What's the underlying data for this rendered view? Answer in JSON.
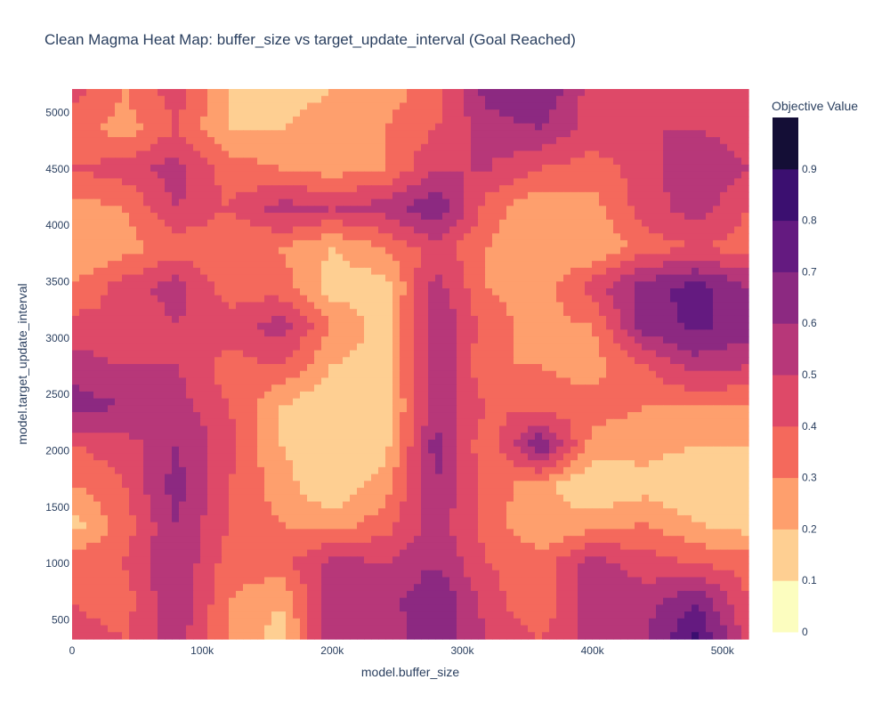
{
  "chart_data": {
    "type": "heatmap",
    "title": "Clean Magma Heat Map: buffer_size vs target_update_interval (Goal Reached)",
    "xlabel": "model.buffer_size",
    "ylabel": "model.target_update_interval",
    "xlim": [
      0,
      520000
    ],
    "ylim": [
      330,
      5210
    ],
    "x_ticks": [
      0,
      100000,
      200000,
      300000,
      400000,
      500000
    ],
    "x_tick_labels": [
      "0",
      "100k",
      "200k",
      "300k",
      "400k",
      "500k"
    ],
    "y_ticks": [
      500,
      1000,
      1500,
      2000,
      2500,
      3000,
      3500,
      4000,
      4500,
      5000
    ],
    "y_tick_labels": [
      "500",
      "1000",
      "1500",
      "2000",
      "2500",
      "3000",
      "3500",
      "4000",
      "4500",
      "5000"
    ],
    "colorbar": {
      "title": "Objective Value",
      "range": [
        0,
        1
      ],
      "ticks": [
        0,
        0.1,
        0.2,
        0.3,
        0.4,
        0.5,
        0.6,
        0.7,
        0.8,
        0.9
      ],
      "tick_labels": [
        "0",
        "0.1",
        "0.2",
        "0.3",
        "0.4",
        "0.5",
        "0.6",
        "0.7",
        "0.8",
        "0.9"
      ],
      "colorscale": [
        "#fcfdbf",
        "#fecf92",
        "#fe9f6d",
        "#f4695c",
        "#de4968",
        "#b73779",
        "#8c2981",
        "#641a80",
        "#3b0f70",
        "#140e36",
        "#000004"
      ]
    },
    "x": [
      0,
      40000,
      80000,
      120000,
      160000,
      200000,
      240000,
      280000,
      320000,
      360000,
      400000,
      440000,
      480000,
      520000
    ],
    "y": [
      330,
      650,
      1000,
      1350,
      1700,
      2050,
      2400,
      2750,
      3100,
      3450,
      3800,
      4150,
      4500,
      4850,
      5210
    ],
    "z": [
      [
        0.45,
        0.4,
        0.55,
        0.3,
        0.15,
        0.6,
        0.55,
        0.65,
        0.5,
        0.4,
        0.55,
        0.6,
        0.82,
        0.45
      ],
      [
        0.4,
        0.35,
        0.6,
        0.3,
        0.2,
        0.55,
        0.55,
        0.7,
        0.45,
        0.3,
        0.6,
        0.55,
        0.7,
        0.4
      ],
      [
        0.35,
        0.4,
        0.6,
        0.35,
        0.35,
        0.55,
        0.5,
        0.6,
        0.4,
        0.35,
        0.55,
        0.45,
        0.4,
        0.35
      ],
      [
        0.15,
        0.35,
        0.6,
        0.4,
        0.3,
        0.25,
        0.35,
        0.55,
        0.35,
        0.2,
        0.25,
        0.3,
        0.2,
        0.15
      ],
      [
        0.3,
        0.4,
        0.65,
        0.4,
        0.25,
        0.1,
        0.25,
        0.6,
        0.35,
        0.25,
        0.1,
        0.15,
        0.1,
        0.1
      ],
      [
        0.4,
        0.45,
        0.6,
        0.45,
        0.2,
        0.1,
        0.15,
        0.65,
        0.3,
        0.7,
        0.25,
        0.25,
        0.2,
        0.2
      ],
      [
        0.65,
        0.6,
        0.55,
        0.4,
        0.2,
        0.1,
        0.15,
        0.55,
        0.4,
        0.35,
        0.35,
        0.3,
        0.3,
        0.3
      ],
      [
        0.55,
        0.5,
        0.5,
        0.35,
        0.4,
        0.2,
        0.15,
        0.6,
        0.3,
        0.3,
        0.25,
        0.4,
        0.55,
        0.5
      ],
      [
        0.45,
        0.4,
        0.5,
        0.45,
        0.55,
        0.3,
        0.15,
        0.6,
        0.35,
        0.25,
        0.3,
        0.65,
        0.72,
        0.65
      ],
      [
        0.3,
        0.45,
        0.55,
        0.35,
        0.35,
        0.15,
        0.15,
        0.55,
        0.3,
        0.25,
        0.45,
        0.65,
        0.75,
        0.6
      ],
      [
        0.2,
        0.25,
        0.35,
        0.3,
        0.3,
        0.2,
        0.3,
        0.45,
        0.3,
        0.2,
        0.2,
        0.35,
        0.4,
        0.35
      ],
      [
        0.25,
        0.3,
        0.5,
        0.4,
        0.55,
        0.5,
        0.55,
        0.7,
        0.35,
        0.2,
        0.25,
        0.45,
        0.55,
        0.4
      ],
      [
        0.4,
        0.45,
        0.55,
        0.35,
        0.3,
        0.25,
        0.3,
        0.5,
        0.5,
        0.4,
        0.35,
        0.45,
        0.6,
        0.5
      ],
      [
        0.35,
        0.25,
        0.4,
        0.2,
        0.2,
        0.25,
        0.3,
        0.4,
        0.55,
        0.6,
        0.45,
        0.5,
        0.5,
        0.45
      ],
      [
        0.45,
        0.3,
        0.45,
        0.2,
        0.15,
        0.2,
        0.25,
        0.35,
        0.65,
        0.7,
        0.45,
        0.45,
        0.5,
        0.4
      ]
    ]
  }
}
